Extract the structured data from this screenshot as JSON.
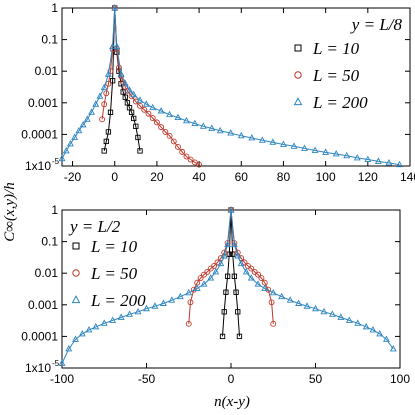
{
  "chart_data": [
    {
      "type": "scatter",
      "panel_label": "y = L/8",
      "ylabel": "C∞(x,y)/h",
      "xlabel": "",
      "xlim": [
        -25,
        140
      ],
      "ylim": [
        1e-05,
        1
      ],
      "y_scale": "log",
      "x_ticks": [
        "-20",
        "0",
        "20",
        "40",
        "60",
        "80",
        "100",
        "120",
        "140"
      ],
      "y_ticks": [
        "1",
        "0.1",
        "0.01",
        "0.001",
        "0.0001",
        "1x10"
      ],
      "y_tick_exponent": "-5",
      "legend_position": "right",
      "series": [
        {
          "name": "L = 10",
          "marker": "square",
          "color": "#000000",
          "points": [
            [
              -5,
              3e-05
            ],
            [
              -4,
              6e-05
            ],
            [
              -3,
              0.00012
            ],
            [
              -2,
              0.0005
            ],
            [
              -1,
              0.005
            ],
            [
              0,
              1
            ],
            [
              1,
              0.04
            ],
            [
              2,
              0.01
            ],
            [
              3,
              0.004
            ],
            [
              4,
              0.0022
            ],
            [
              5,
              0.0015
            ],
            [
              6,
              0.001
            ],
            [
              7,
              0.0007
            ],
            [
              8,
              0.0005
            ],
            [
              9,
              0.00032
            ],
            [
              10,
              0.00018
            ],
            [
              11,
              8e-05
            ],
            [
              12,
              3e-05
            ]
          ]
        },
        {
          "name": "L = 50",
          "marker": "circle",
          "color": "#c0392b",
          "points": [
            [
              -6,
              0.0003
            ],
            [
              -5,
              0.0009
            ],
            [
              -4,
              0.002
            ],
            [
              -3,
              0.004
            ],
            [
              -2,
              0.01
            ],
            [
              -1,
              0.05
            ],
            [
              0,
              1
            ],
            [
              1,
              0.05
            ],
            [
              2,
              0.013
            ],
            [
              3,
              0.007
            ],
            [
              4,
              0.0045
            ],
            [
              5,
              0.0032
            ],
            [
              6,
              0.0024
            ],
            [
              8,
              0.0016
            ],
            [
              10,
              0.0011
            ],
            [
              12,
              0.0008
            ],
            [
              14,
              0.0006
            ],
            [
              16,
              0.00045
            ],
            [
              18,
              0.00033
            ],
            [
              20,
              0.00024
            ],
            [
              22,
              0.00017
            ],
            [
              24,
              0.00012
            ],
            [
              26,
              9e-05
            ],
            [
              28,
              6e-05
            ],
            [
              30,
              4e-05
            ],
            [
              32,
              2.8e-05
            ],
            [
              34,
              2e-05
            ],
            [
              36,
              1.6e-05
            ],
            [
              38,
              1.3e-05
            ],
            [
              40,
              1.1e-05
            ]
          ]
        },
        {
          "name": "L = 200",
          "marker": "triangle",
          "color": "#2e86c1",
          "points": [
            [
              -25,
              1.7e-05
            ],
            [
              -23,
              3e-05
            ],
            [
              -21,
              5e-05
            ],
            [
              -19,
              8e-05
            ],
            [
              -17,
              0.00013
            ],
            [
              -15,
              0.0002
            ],
            [
              -13,
              0.0003
            ],
            [
              -11,
              0.0005
            ],
            [
              -9,
              0.0009
            ],
            [
              -7,
              0.0016
            ],
            [
              -5,
              0.003
            ],
            [
              -3,
              0.008
            ],
            [
              -1,
              0.06
            ],
            [
              0,
              1
            ],
            [
              1,
              0.06
            ],
            [
              3,
              0.008
            ],
            [
              5,
              0.004
            ],
            [
              7,
              0.0025
            ],
            [
              9,
              0.0018
            ],
            [
              12,
              0.0012
            ],
            [
              15,
              0.0009
            ],
            [
              18,
              0.0007
            ],
            [
              22,
              0.00055
            ],
            [
              26,
              0.00042
            ],
            [
              30,
              0.00034
            ],
            [
              34,
              0.00027
            ],
            [
              38,
              0.00022
            ],
            [
              42,
              0.00018
            ],
            [
              46,
              0.000155
            ],
            [
              50,
              0.00013
            ],
            [
              55,
              0.00011
            ],
            [
              60,
              9e-05
            ],
            [
              65,
              7.7e-05
            ],
            [
              70,
              6.5e-05
            ],
            [
              75,
              5.6e-05
            ],
            [
              80,
              4.8e-05
            ],
            [
              85,
              4.2e-05
            ],
            [
              90,
              3.6e-05
            ],
            [
              95,
              3.1e-05
            ],
            [
              100,
              2.7e-05
            ],
            [
              105,
              2.4e-05
            ],
            [
              110,
              2.1e-05
            ],
            [
              115,
              1.8e-05
            ],
            [
              120,
              1.6e-05
            ],
            [
              125,
              1.4e-05
            ],
            [
              130,
              1.25e-05
            ],
            [
              135,
              1.1e-05
            ]
          ]
        }
      ]
    },
    {
      "type": "scatter",
      "panel_label": "y = L/2",
      "ylabel": "",
      "xlabel": "n(x-y)",
      "xlim": [
        -100,
        100
      ],
      "ylim": [
        1e-05,
        1
      ],
      "y_scale": "log",
      "x_ticks": [
        "-100",
        "-50",
        "0",
        "50",
        "100"
      ],
      "y_ticks": [
        "1",
        "0.1",
        "0.01",
        "0.001",
        "0.0001",
        "1x10"
      ],
      "y_tick_exponent": "-5",
      "legend_position": "left",
      "series": [
        {
          "name": "L = 10",
          "marker": "square",
          "color": "#000000",
          "points": [
            [
              -5,
              0.0001
            ],
            [
              -4,
              0.0006
            ],
            [
              -3,
              0.0025
            ],
            [
              -2,
              0.008
            ],
            [
              -1,
              0.04
            ],
            [
              0,
              1
            ],
            [
              1,
              0.04
            ],
            [
              2,
              0.008
            ],
            [
              3,
              0.0025
            ],
            [
              4,
              0.0006
            ],
            [
              5,
              0.0001
            ]
          ]
        },
        {
          "name": "L = 50",
          "marker": "circle",
          "color": "#c0392b",
          "points": [
            [
              -25,
              0.00025
            ],
            [
              -24,
              0.0012
            ],
            [
              -22,
              0.003
            ],
            [
              -20,
              0.005
            ],
            [
              -18,
              0.007
            ],
            [
              -16,
              0.009
            ],
            [
              -14,
              0.011
            ],
            [
              -12,
              0.014
            ],
            [
              -10,
              0.017
            ],
            [
              -8,
              0.022
            ],
            [
              -6,
              0.03
            ],
            [
              -4,
              0.045
            ],
            [
              -2,
              0.09
            ],
            [
              0,
              1
            ],
            [
              2,
              0.09
            ],
            [
              4,
              0.045
            ],
            [
              6,
              0.03
            ],
            [
              8,
              0.022
            ],
            [
              10,
              0.017
            ],
            [
              12,
              0.014
            ],
            [
              14,
              0.011
            ],
            [
              16,
              0.009
            ],
            [
              18,
              0.007
            ],
            [
              20,
              0.005
            ],
            [
              22,
              0.003
            ],
            [
              24,
              0.0012
            ],
            [
              25,
              0.00025
            ]
          ]
        },
        {
          "name": "L = 200",
          "marker": "triangle",
          "color": "#2e86c1",
          "points": [
            [
              -100,
              1.4e-05
            ],
            [
              -96,
              4e-05
            ],
            [
              -92,
              8e-05
            ],
            [
              -88,
              0.00012
            ],
            [
              -84,
              0.00016
            ],
            [
              -80,
              0.0002
            ],
            [
              -75,
              0.00026
            ],
            [
              -70,
              0.00032
            ],
            [
              -65,
              0.0004
            ],
            [
              -60,
              0.0005
            ],
            [
              -55,
              0.0006
            ],
            [
              -50,
              0.00075
            ],
            [
              -45,
              0.0009
            ],
            [
              -40,
              0.0011
            ],
            [
              -35,
              0.0014
            ],
            [
              -30,
              0.0018
            ],
            [
              -25,
              0.0024
            ],
            [
              -20,
              0.0033
            ],
            [
              -16,
              0.0045
            ],
            [
              -12,
              0.007
            ],
            [
              -9,
              0.011
            ],
            [
              -6,
              0.02
            ],
            [
              -4,
              0.035
            ],
            [
              -2,
              0.08
            ],
            [
              0,
              1
            ],
            [
              2,
              0.08
            ],
            [
              4,
              0.035
            ],
            [
              6,
              0.02
            ],
            [
              9,
              0.011
            ],
            [
              12,
              0.007
            ],
            [
              16,
              0.0045
            ],
            [
              20,
              0.0033
            ],
            [
              25,
              0.0024
            ],
            [
              30,
              0.0018
            ],
            [
              35,
              0.0014
            ],
            [
              40,
              0.0011
            ],
            [
              45,
              0.0009
            ],
            [
              50,
              0.00075
            ],
            [
              55,
              0.0006
            ],
            [
              60,
              0.0005
            ],
            [
              65,
              0.0004
            ],
            [
              70,
              0.00032
            ],
            [
              75,
              0.00026
            ],
            [
              80,
              0.0002
            ],
            [
              84,
              0.00016
            ],
            [
              88,
              0.00012
            ],
            [
              92,
              8e-05
            ],
            [
              96,
              4e-05
            ]
          ]
        }
      ]
    }
  ]
}
